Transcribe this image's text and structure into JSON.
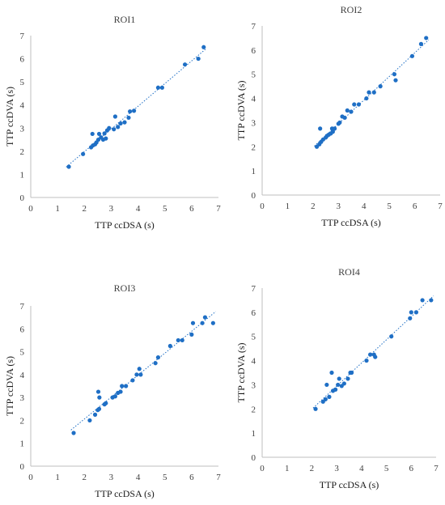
{
  "style": {
    "marker_color": "#1f6fc5",
    "trend_color": "#1f6fc5",
    "axis_color": "#bfbfbf",
    "text_color": "#404040"
  },
  "chart_data": [
    {
      "type": "scatter",
      "title": "ROI1",
      "xlabel": "TTP ccDSA  (s)",
      "ylabel": "TTP ccDVA (s)",
      "xlim": [
        0,
        7
      ],
      "ylim": [
        0,
        7
      ],
      "xticks": [
        "0",
        "1",
        "2",
        "3",
        "4",
        "5",
        "6",
        "7"
      ],
      "yticks": [
        "0",
        "1",
        "2",
        "3",
        "4",
        "5",
        "6",
        "7"
      ],
      "trendline": "linear",
      "points": [
        [
          1.42,
          1.33
        ],
        [
          1.95,
          1.88
        ],
        [
          2.25,
          2.17
        ],
        [
          2.3,
          2.75
        ],
        [
          2.32,
          2.25
        ],
        [
          2.4,
          2.3
        ],
        [
          2.45,
          2.38
        ],
        [
          2.52,
          2.5
        ],
        [
          2.55,
          2.75
        ],
        [
          2.62,
          2.6
        ],
        [
          2.7,
          2.5
        ],
        [
          2.75,
          2.77
        ],
        [
          2.8,
          2.55
        ],
        [
          2.85,
          2.9
        ],
        [
          2.92,
          3.0
        ],
        [
          3.1,
          2.95
        ],
        [
          3.15,
          3.5
        ],
        [
          3.25,
          3.05
        ],
        [
          3.35,
          3.2
        ],
        [
          3.5,
          3.25
        ],
        [
          3.65,
          3.45
        ],
        [
          3.7,
          3.72
        ],
        [
          3.85,
          3.75
        ],
        [
          4.75,
          4.75
        ],
        [
          4.9,
          4.75
        ],
        [
          5.75,
          5.75
        ],
        [
          6.25,
          6.0
        ],
        [
          6.45,
          6.5
        ]
      ]
    },
    {
      "type": "scatter",
      "title": "ROI2",
      "xlabel": "TTP ccDSA  (s)",
      "ylabel": "TTP ccDVA (s)",
      "xlim": [
        0,
        7
      ],
      "ylim": [
        0,
        7
      ],
      "xticks": [
        "0",
        "1",
        "2",
        "3",
        "4",
        "5",
        "6",
        "7"
      ],
      "yticks": [
        "0",
        "1",
        "2",
        "3",
        "4",
        "5",
        "6",
        "7"
      ],
      "trendline": "linear",
      "points": [
        [
          2.15,
          2.0
        ],
        [
          2.25,
          2.1
        ],
        [
          2.28,
          2.75
        ],
        [
          2.32,
          2.2
        ],
        [
          2.4,
          2.3
        ],
        [
          2.5,
          2.38
        ],
        [
          2.55,
          2.45
        ],
        [
          2.62,
          2.5
        ],
        [
          2.7,
          2.55
        ],
        [
          2.75,
          2.75
        ],
        [
          2.78,
          2.62
        ],
        [
          2.85,
          2.75
        ],
        [
          3.0,
          2.95
        ],
        [
          3.05,
          3.0
        ],
        [
          3.15,
          3.25
        ],
        [
          3.25,
          3.2
        ],
        [
          3.35,
          3.5
        ],
        [
          3.5,
          3.45
        ],
        [
          3.62,
          3.75
        ],
        [
          3.8,
          3.75
        ],
        [
          4.1,
          4.0
        ],
        [
          4.2,
          4.25
        ],
        [
          4.4,
          4.25
        ],
        [
          4.65,
          4.5
        ],
        [
          5.2,
          5.0
        ],
        [
          5.25,
          4.75
        ],
        [
          5.9,
          5.75
        ],
        [
          6.25,
          6.25
        ],
        [
          6.45,
          6.5
        ]
      ]
    },
    {
      "type": "scatter",
      "title": "ROI3",
      "xlabel": "TTP ccDSA  (s)",
      "ylabel": "TTP ccDVA (s)",
      "xlim": [
        0,
        7
      ],
      "ylim": [
        0,
        7
      ],
      "xticks": [
        "0",
        "1",
        "2",
        "3",
        "4",
        "5",
        "6",
        "7"
      ],
      "yticks": [
        "0",
        "1",
        "2",
        "3",
        "4",
        "5",
        "6",
        "7"
      ],
      "trendline": "linear",
      "points": [
        [
          1.6,
          1.45
        ],
        [
          2.2,
          2.0
        ],
        [
          2.4,
          2.25
        ],
        [
          2.5,
          2.45
        ],
        [
          2.52,
          3.25
        ],
        [
          2.55,
          2.5
        ],
        [
          2.56,
          3.0
        ],
        [
          2.75,
          2.7
        ],
        [
          2.8,
          2.75
        ],
        [
          3.05,
          3.0
        ],
        [
          3.15,
          3.05
        ],
        [
          3.25,
          3.2
        ],
        [
          3.35,
          3.25
        ],
        [
          3.4,
          3.5
        ],
        [
          3.55,
          3.5
        ],
        [
          3.8,
          3.75
        ],
        [
          3.95,
          4.0
        ],
        [
          4.05,
          4.25
        ],
        [
          4.1,
          4.0
        ],
        [
          4.65,
          4.5
        ],
        [
          4.75,
          4.75
        ],
        [
          5.2,
          5.25
        ],
        [
          5.5,
          5.5
        ],
        [
          5.65,
          5.5
        ],
        [
          6.0,
          5.75
        ],
        [
          6.05,
          6.25
        ],
        [
          6.4,
          6.25
        ],
        [
          6.5,
          6.5
        ],
        [
          6.8,
          6.25
        ]
      ]
    },
    {
      "type": "scatter",
      "title": "ROI4",
      "xlabel": "TTP ccDSA  (s)",
      "ylabel": "TTP ccDVA (s)",
      "xlim": [
        0,
        7
      ],
      "ylim": [
        0,
        7
      ],
      "xticks": [
        "0",
        "1",
        "2",
        "3",
        "4",
        "5",
        "6",
        "7"
      ],
      "yticks": [
        "0",
        "1",
        "2",
        "3",
        "4",
        "5",
        "6",
        "7"
      ],
      "trendline": "linear",
      "points": [
        [
          2.15,
          2.0
        ],
        [
          2.45,
          2.3
        ],
        [
          2.55,
          2.4
        ],
        [
          2.6,
          3.0
        ],
        [
          2.7,
          2.5
        ],
        [
          2.8,
          3.5
        ],
        [
          2.85,
          2.75
        ],
        [
          2.95,
          2.8
        ],
        [
          3.05,
          3.0
        ],
        [
          3.1,
          3.25
        ],
        [
          3.2,
          2.95
        ],
        [
          3.3,
          3.05
        ],
        [
          3.45,
          3.25
        ],
        [
          3.55,
          3.5
        ],
        [
          3.6,
          3.5
        ],
        [
          4.2,
          4.0
        ],
        [
          4.35,
          4.25
        ],
        [
          4.5,
          4.25
        ],
        [
          4.55,
          4.15
        ],
        [
          5.2,
          5.0
        ],
        [
          5.95,
          5.75
        ],
        [
          6.0,
          6.0
        ],
        [
          6.2,
          6.0
        ],
        [
          6.45,
          6.5
        ],
        [
          6.8,
          6.5
        ]
      ]
    }
  ]
}
